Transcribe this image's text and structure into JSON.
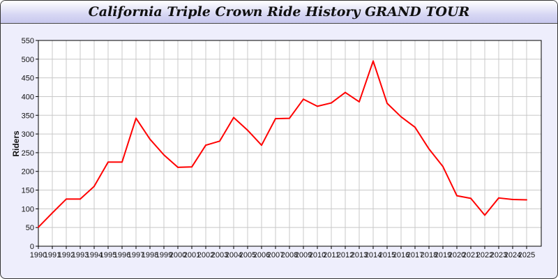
{
  "chart_data": {
    "type": "line",
    "title": "California Triple Crown Ride History GRAND TOUR",
    "xlabel": "",
    "ylabel": "Riders",
    "ylim": [
      0,
      550
    ],
    "yticks": [
      0,
      50,
      100,
      150,
      200,
      250,
      300,
      350,
      400,
      450,
      500,
      550
    ],
    "grid": true,
    "line_color": "#ff0000",
    "x": [
      1990,
      1991,
      1992,
      1993,
      1994,
      1995,
      1996,
      1997,
      1998,
      1999,
      2000,
      2001,
      2002,
      2003,
      2004,
      2005,
      2006,
      2007,
      2008,
      2009,
      2010,
      2011,
      2012,
      2013,
      2014,
      2015,
      2016,
      2017,
      2018,
      2019,
      2020,
      2021,
      2022,
      2023,
      2024,
      2025
    ],
    "series": [
      {
        "values": [
          51,
          89,
          126,
          126,
          160,
          225,
          225,
          342,
          286,
          244,
          211,
          212,
          270,
          281,
          344,
          310,
          270,
          341,
          342,
          393,
          374,
          383,
          411,
          386,
          495,
          382,
          346,
          318,
          260,
          213,
          135,
          128,
          83,
          129,
          125,
          124
        ]
      }
    ]
  }
}
